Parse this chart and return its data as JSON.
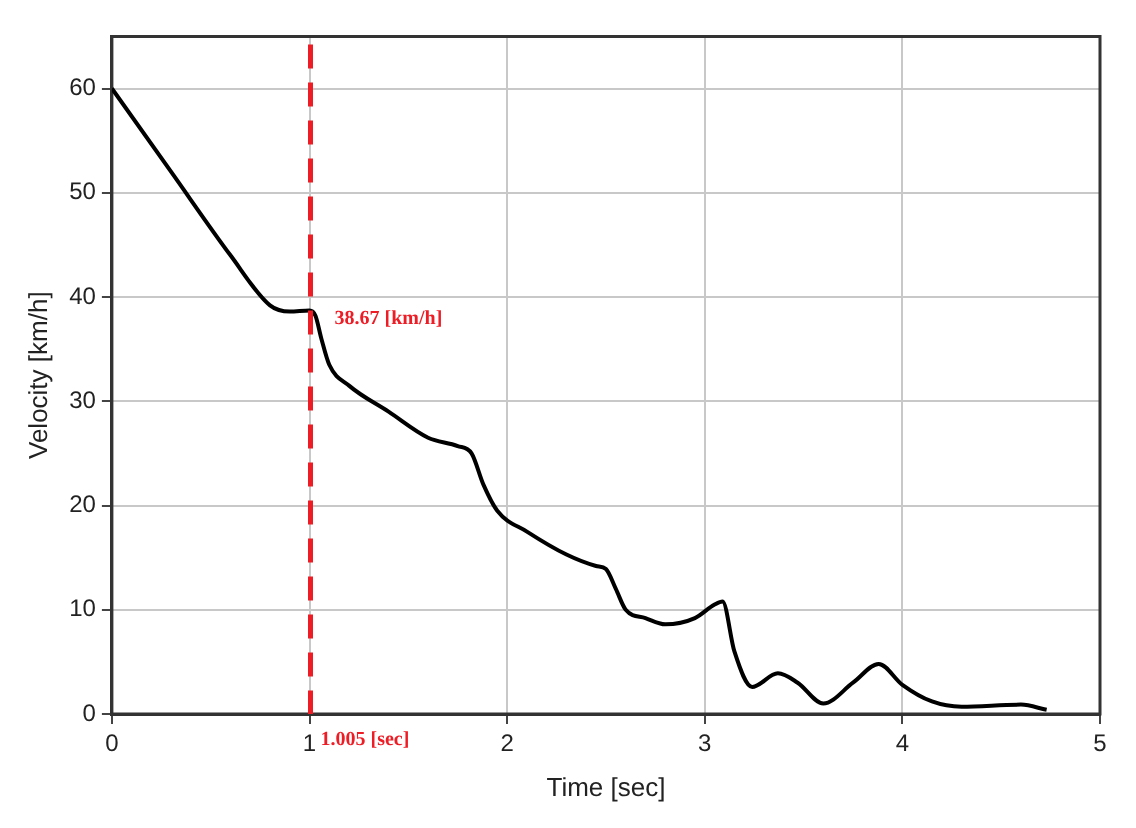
{
  "chart_data": {
    "type": "line",
    "xlabel": "Time [sec]",
    "ylabel": "Velocity [km/h]",
    "xlim": [
      0,
      5
    ],
    "xticks": [
      0,
      1,
      2,
      3,
      4,
      5
    ],
    "ylim": [
      0,
      65
    ],
    "yticks": [
      0,
      10,
      20,
      30,
      40,
      50,
      60
    ],
    "grid": true,
    "legend": false,
    "marker": "none",
    "line_style": "solid",
    "series": [
      {
        "color": "#000000",
        "x": [
          0,
          0.3,
          0.6,
          0.8,
          0.9,
          1.0,
          1.03,
          1.06,
          1.1,
          1.2,
          1.4,
          1.6,
          1.75,
          1.82,
          1.88,
          1.95,
          2.1,
          2.3,
          2.45,
          2.5,
          2.55,
          2.6,
          2.7,
          2.8,
          2.95,
          3.05,
          3.09,
          3.15,
          3.24,
          3.37,
          3.47,
          3.6,
          3.75,
          3.88,
          4.0,
          4.15,
          4.3,
          4.6,
          4.73
        ],
        "values": [
          60,
          52,
          44,
          39.2,
          38.6,
          38.7,
          38.2,
          36,
          33.5,
          31.5,
          29,
          26.5,
          25.7,
          25,
          22,
          19.5,
          17.5,
          15.3,
          14.2,
          13.9,
          12,
          10,
          9.2,
          8.6,
          9.2,
          10.5,
          10.8,
          6,
          2.6,
          3.9,
          3,
          1,
          3,
          4.8,
          2.8,
          1.2,
          0.7,
          0.9,
          0.4
        ]
      }
    ],
    "ref_lines": [
      {
        "axis": "x",
        "value": 1.005,
        "label": "1.005 [sec]",
        "color": "#ee1c25",
        "line_style": "dashed"
      }
    ],
    "annotations": [
      {
        "text": "38.67 [km/h]",
        "x": 1.005,
        "y": 38.67
      }
    ]
  }
}
